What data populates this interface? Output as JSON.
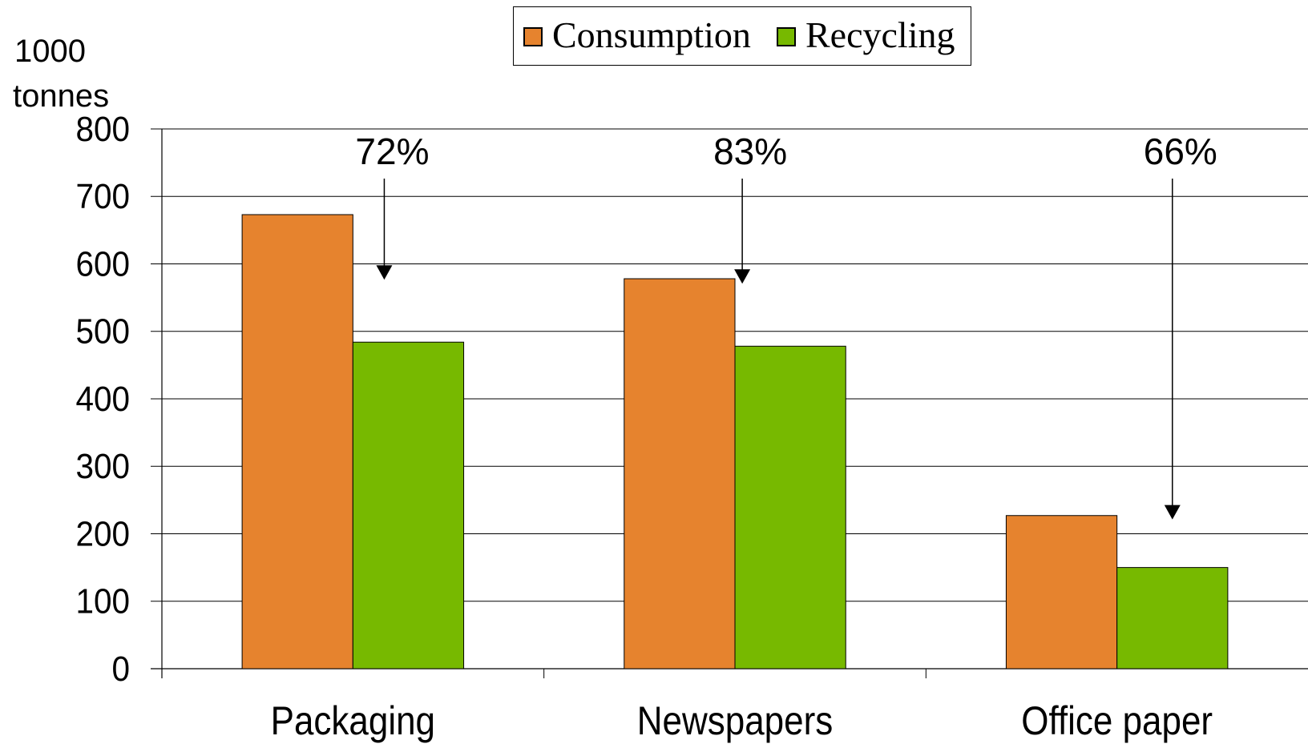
{
  "chart_data": {
    "type": "bar",
    "title": "",
    "ylabel_lines": [
      "1000",
      "tonnes"
    ],
    "xlabel": "",
    "ylim": [
      0,
      800
    ],
    "yticks": [
      0,
      100,
      200,
      300,
      400,
      500,
      600,
      700,
      800
    ],
    "grid": true,
    "legend_position": "top-center",
    "categories": [
      "Packaging",
      "Newspapers",
      "Office paper"
    ],
    "series": [
      {
        "name": "Consumption",
        "color": "#E6832E",
        "values": [
          673,
          578,
          227
        ]
      },
      {
        "name": "Recycling",
        "color": "#77B900",
        "values": [
          484,
          478,
          150
        ]
      }
    ],
    "annotations": [
      {
        "category": "Packaging",
        "text": "72%"
      },
      {
        "category": "Newspapers",
        "text": "83%"
      },
      {
        "category": "Office paper",
        "text": "66%"
      }
    ]
  }
}
